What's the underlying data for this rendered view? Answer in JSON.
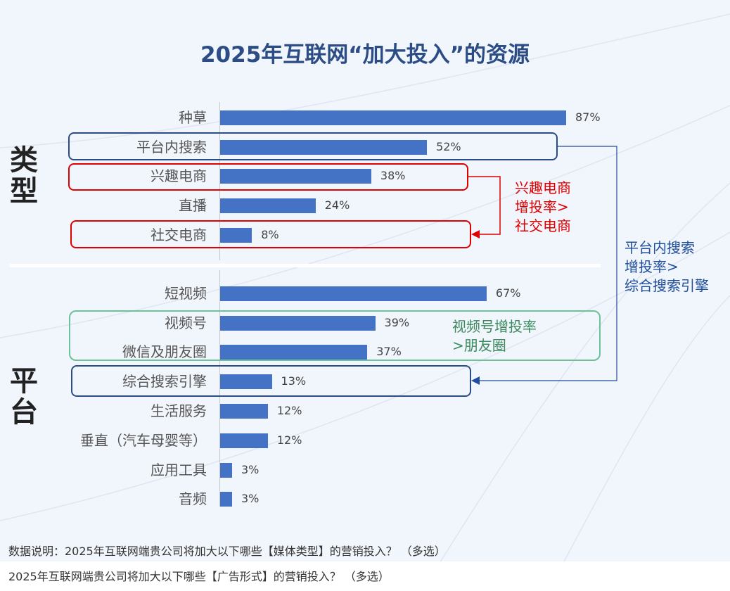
{
  "chart_data": {
    "type": "bar",
    "title": "2025年互联网“加大投入”的资源",
    "groups": [
      {
        "name": "类型",
        "categories": [
          "种草",
          "平台内搜索",
          "兴趣电商",
          "直播",
          "社交电商"
        ],
        "values": [
          87,
          52,
          38,
          24,
          8
        ]
      },
      {
        "name": "平台",
        "categories": [
          "短视频",
          "视频号",
          "微信及朋友圈",
          "综合搜索引擎",
          "生活服务",
          "垂直（汽车母婴等）",
          "应用工具",
          "音频"
        ],
        "values": [
          67,
          39,
          37,
          13,
          12,
          12,
          3,
          3
        ]
      }
    ],
    "value_suffix": "%",
    "xlim": [
      0,
      100
    ],
    "bar_color": "#4472c4",
    "annotations": [
      {
        "text": [
          "兴趣电商",
          "增投率>",
          "社交电商"
        ],
        "color": "#e00000"
      },
      {
        "text": [
          "平台内搜索",
          "增投率>",
          "综合搜索引擎"
        ],
        "color": "#1f4e9c"
      },
      {
        "text": [
          "视频号增投率",
          ">朋友圈"
        ],
        "color": "#3a8a5e"
      }
    ]
  },
  "footer": {
    "line1": "数据说明：2025年互联网端贵公司将加大以下哪些【媒体类型】的营销投入？ （多选）",
    "line2": "2025年互联网端贵公司将加大以下哪些【广告形式】的营销投入？ （多选）"
  }
}
